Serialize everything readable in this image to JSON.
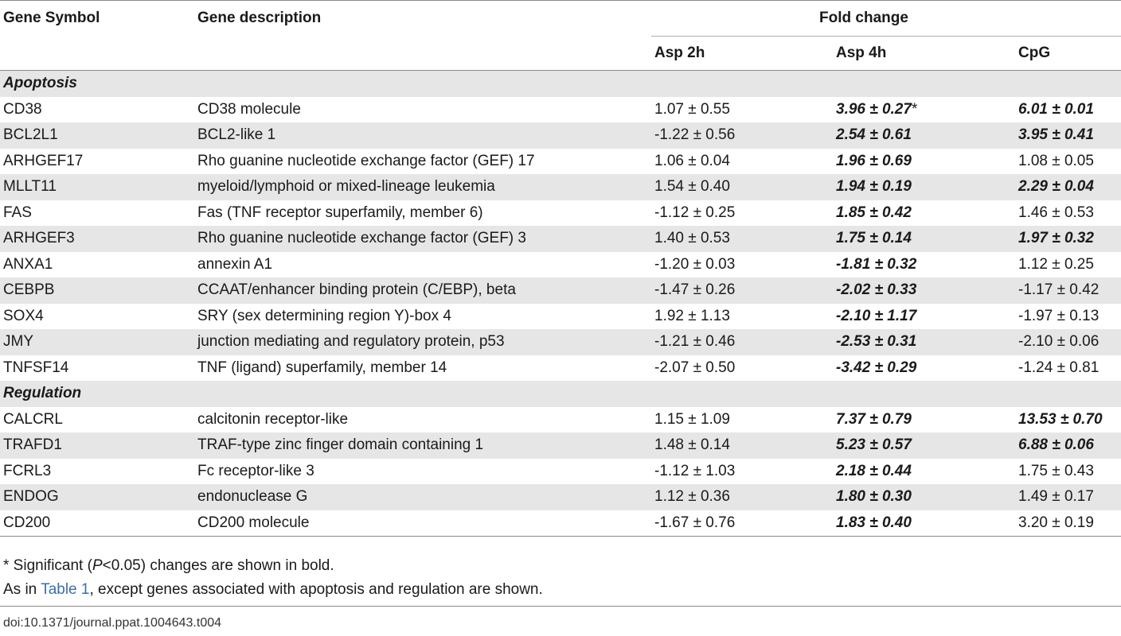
{
  "table": {
    "headers": {
      "gene_symbol": "Gene Symbol",
      "gene_description": "Gene description",
      "fold_change": "Fold change",
      "asp2h": "Asp 2h",
      "asp4h": "Asp 4h",
      "cpg": "CpG"
    },
    "sections": [
      {
        "title": "Apoptosis",
        "rows": [
          {
            "symbol": "CD38",
            "description": "CD38 molecule",
            "asp2h": "1.07 ± 0.55",
            "asp4h": "3.96 ± 0.27",
            "asp4h_star": "*",
            "cpg": "6.01 ± 0.01",
            "asp2h_sig": false,
            "asp4h_sig": true,
            "cpg_sig": true
          },
          {
            "symbol": "BCL2L1",
            "description": "BCL2-like 1",
            "asp2h": "-1.22 ± 0.56",
            "asp4h": "2.54 ± 0.61",
            "cpg": "3.95 ± 0.41",
            "asp2h_sig": false,
            "asp4h_sig": true,
            "cpg_sig": true
          },
          {
            "symbol": "ARHGEF17",
            "description": "Rho guanine nucleotide exchange factor (GEF) 17",
            "asp2h": "1.06 ± 0.04",
            "asp4h": "1.96 ± 0.69",
            "cpg": "1.08 ± 0.05",
            "asp2h_sig": false,
            "asp4h_sig": true,
            "cpg_sig": false
          },
          {
            "symbol": "MLLT11",
            "description": "myeloid/lymphoid or mixed-lineage leukemia",
            "asp2h": "1.54 ± 0.40",
            "asp4h": "1.94 ± 0.19",
            "cpg": "2.29 ± 0.04",
            "asp2h_sig": false,
            "asp4h_sig": true,
            "cpg_sig": true
          },
          {
            "symbol": "FAS",
            "description": "Fas (TNF receptor superfamily, member 6)",
            "asp2h": "-1.12 ± 0.25",
            "asp4h": "1.85 ± 0.42",
            "cpg": "1.46 ± 0.53",
            "asp2h_sig": false,
            "asp4h_sig": true,
            "cpg_sig": false
          },
          {
            "symbol": "ARHGEF3",
            "description": "Rho guanine nucleotide exchange factor (GEF) 3",
            "asp2h": "1.40 ± 0.53",
            "asp4h": "1.75 ± 0.14",
            "cpg": "1.97 ± 0.32",
            "asp2h_sig": false,
            "asp4h_sig": true,
            "cpg_sig": true
          },
          {
            "symbol": "ANXA1",
            "description": "annexin A1",
            "asp2h": "-1.20 ± 0.03",
            "asp4h": "-1.81 ± 0.32",
            "cpg": "1.12 ± 0.25",
            "asp2h_sig": false,
            "asp4h_sig": true,
            "cpg_sig": false
          },
          {
            "symbol": "CEBPB",
            "description": "CCAAT/enhancer binding protein (C/EBP), beta",
            "asp2h": "-1.47 ± 0.26",
            "asp4h": "-2.02 ± 0.33",
            "cpg": "-1.17 ± 0.42",
            "asp2h_sig": false,
            "asp4h_sig": true,
            "cpg_sig": false
          },
          {
            "symbol": "SOX4",
            "description": "SRY (sex determining region Y)-box 4",
            "asp2h": "1.92 ± 1.13",
            "asp4h": "-2.10 ± 1.17",
            "cpg": "-1.97 ± 0.13",
            "asp2h_sig": false,
            "asp4h_sig": true,
            "cpg_sig": false
          },
          {
            "symbol": "JMY",
            "description": "junction mediating and regulatory protein, p53",
            "asp2h": "-1.21 ± 0.46",
            "asp4h": "-2.53 ± 0.31",
            "cpg": "-2.10 ± 0.06",
            "asp2h_sig": false,
            "asp4h_sig": true,
            "cpg_sig": false
          },
          {
            "symbol": "TNFSF14",
            "description": "TNF (ligand) superfamily, member 14",
            "asp2h": "-2.07 ± 0.50",
            "asp4h": "-3.42 ± 0.29",
            "cpg": "-1.24 ± 0.81",
            "asp2h_sig": false,
            "asp4h_sig": true,
            "cpg_sig": false
          }
        ]
      },
      {
        "title": "Regulation",
        "rows": [
          {
            "symbol": "CALCRL",
            "description": "calcitonin receptor-like",
            "asp2h": "1.15 ± 1.09",
            "asp4h": "7.37 ± 0.79",
            "cpg": "13.53 ± 0.70",
            "asp2h_sig": false,
            "asp4h_sig": true,
            "cpg_sig": true
          },
          {
            "symbol": "TRAFD1",
            "description": "TRAF-type zinc finger domain containing 1",
            "asp2h": "1.48 ± 0.14",
            "asp4h": "5.23 ± 0.57",
            "cpg": "6.88 ± 0.06",
            "asp2h_sig": false,
            "asp4h_sig": true,
            "cpg_sig": true
          },
          {
            "symbol": "FCRL3",
            "description": "Fc receptor-like 3",
            "asp2h": "-1.12 ± 1.03",
            "asp4h": "2.18 ± 0.44",
            "cpg": "1.75 ± 0.43",
            "asp2h_sig": false,
            "asp4h_sig": true,
            "cpg_sig": false
          },
          {
            "symbol": "ENDOG",
            "description": "endonuclease G",
            "asp2h": "1.12 ± 0.36",
            "asp4h": "1.80 ± 0.30",
            "cpg": "1.49 ± 0.17",
            "asp2h_sig": false,
            "asp4h_sig": true,
            "cpg_sig": false
          },
          {
            "symbol": "CD200",
            "description": "CD200 molecule",
            "asp2h": "-1.67 ± 0.76",
            "asp4h": "1.83 ± 0.40",
            "cpg": "3.20 ± 0.19",
            "asp2h_sig": false,
            "asp4h_sig": true,
            "cpg_sig": false
          }
        ]
      }
    ]
  },
  "footnotes": {
    "significance_prefix": "* Significant (",
    "significance_p": "P",
    "significance_suffix": "<0.05) changes are shown in bold.",
    "note_prefix": "As in ",
    "note_link": "Table 1",
    "note_suffix": ", except genes associated with apoptosis and regulation are shown."
  },
  "doi": "doi:10.1371/journal.ppat.1004643.t004",
  "colors": {
    "row_shade": "#e6e6e6",
    "link": "#3a6fa8"
  }
}
